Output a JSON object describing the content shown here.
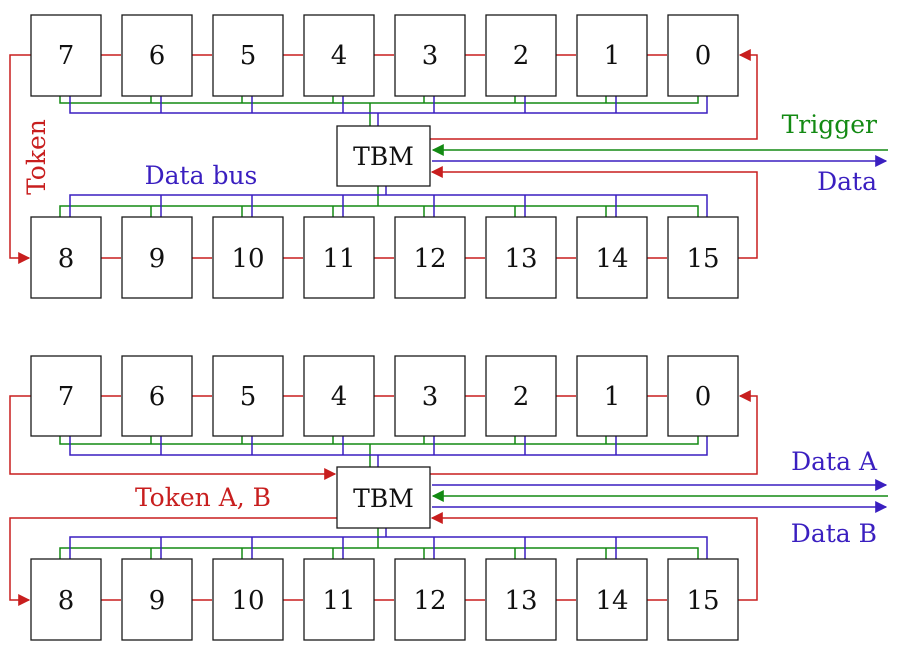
{
  "colors": {
    "token": "#c81e1e",
    "trigger": "#138a13",
    "data": "#3a1fc0"
  },
  "top_diagram": {
    "row_top": [
      "7",
      "6",
      "5",
      "4",
      "3",
      "2",
      "1",
      "0"
    ],
    "row_bottom": [
      "8",
      "9",
      "10",
      "11",
      "12",
      "13",
      "14",
      "15"
    ],
    "tbm": "TBM",
    "labels": {
      "token": "Token",
      "data_bus": "Data bus",
      "trigger": "Trigger",
      "data": "Data"
    }
  },
  "bottom_diagram": {
    "row_top": [
      "7",
      "6",
      "5",
      "4",
      "3",
      "2",
      "1",
      "0"
    ],
    "row_bottom": [
      "8",
      "9",
      "10",
      "11",
      "12",
      "13",
      "14",
      "15"
    ],
    "tbm": "TBM",
    "labels": {
      "token": "Token A, B",
      "data_a": "Data A",
      "data_b": "Data B"
    }
  }
}
